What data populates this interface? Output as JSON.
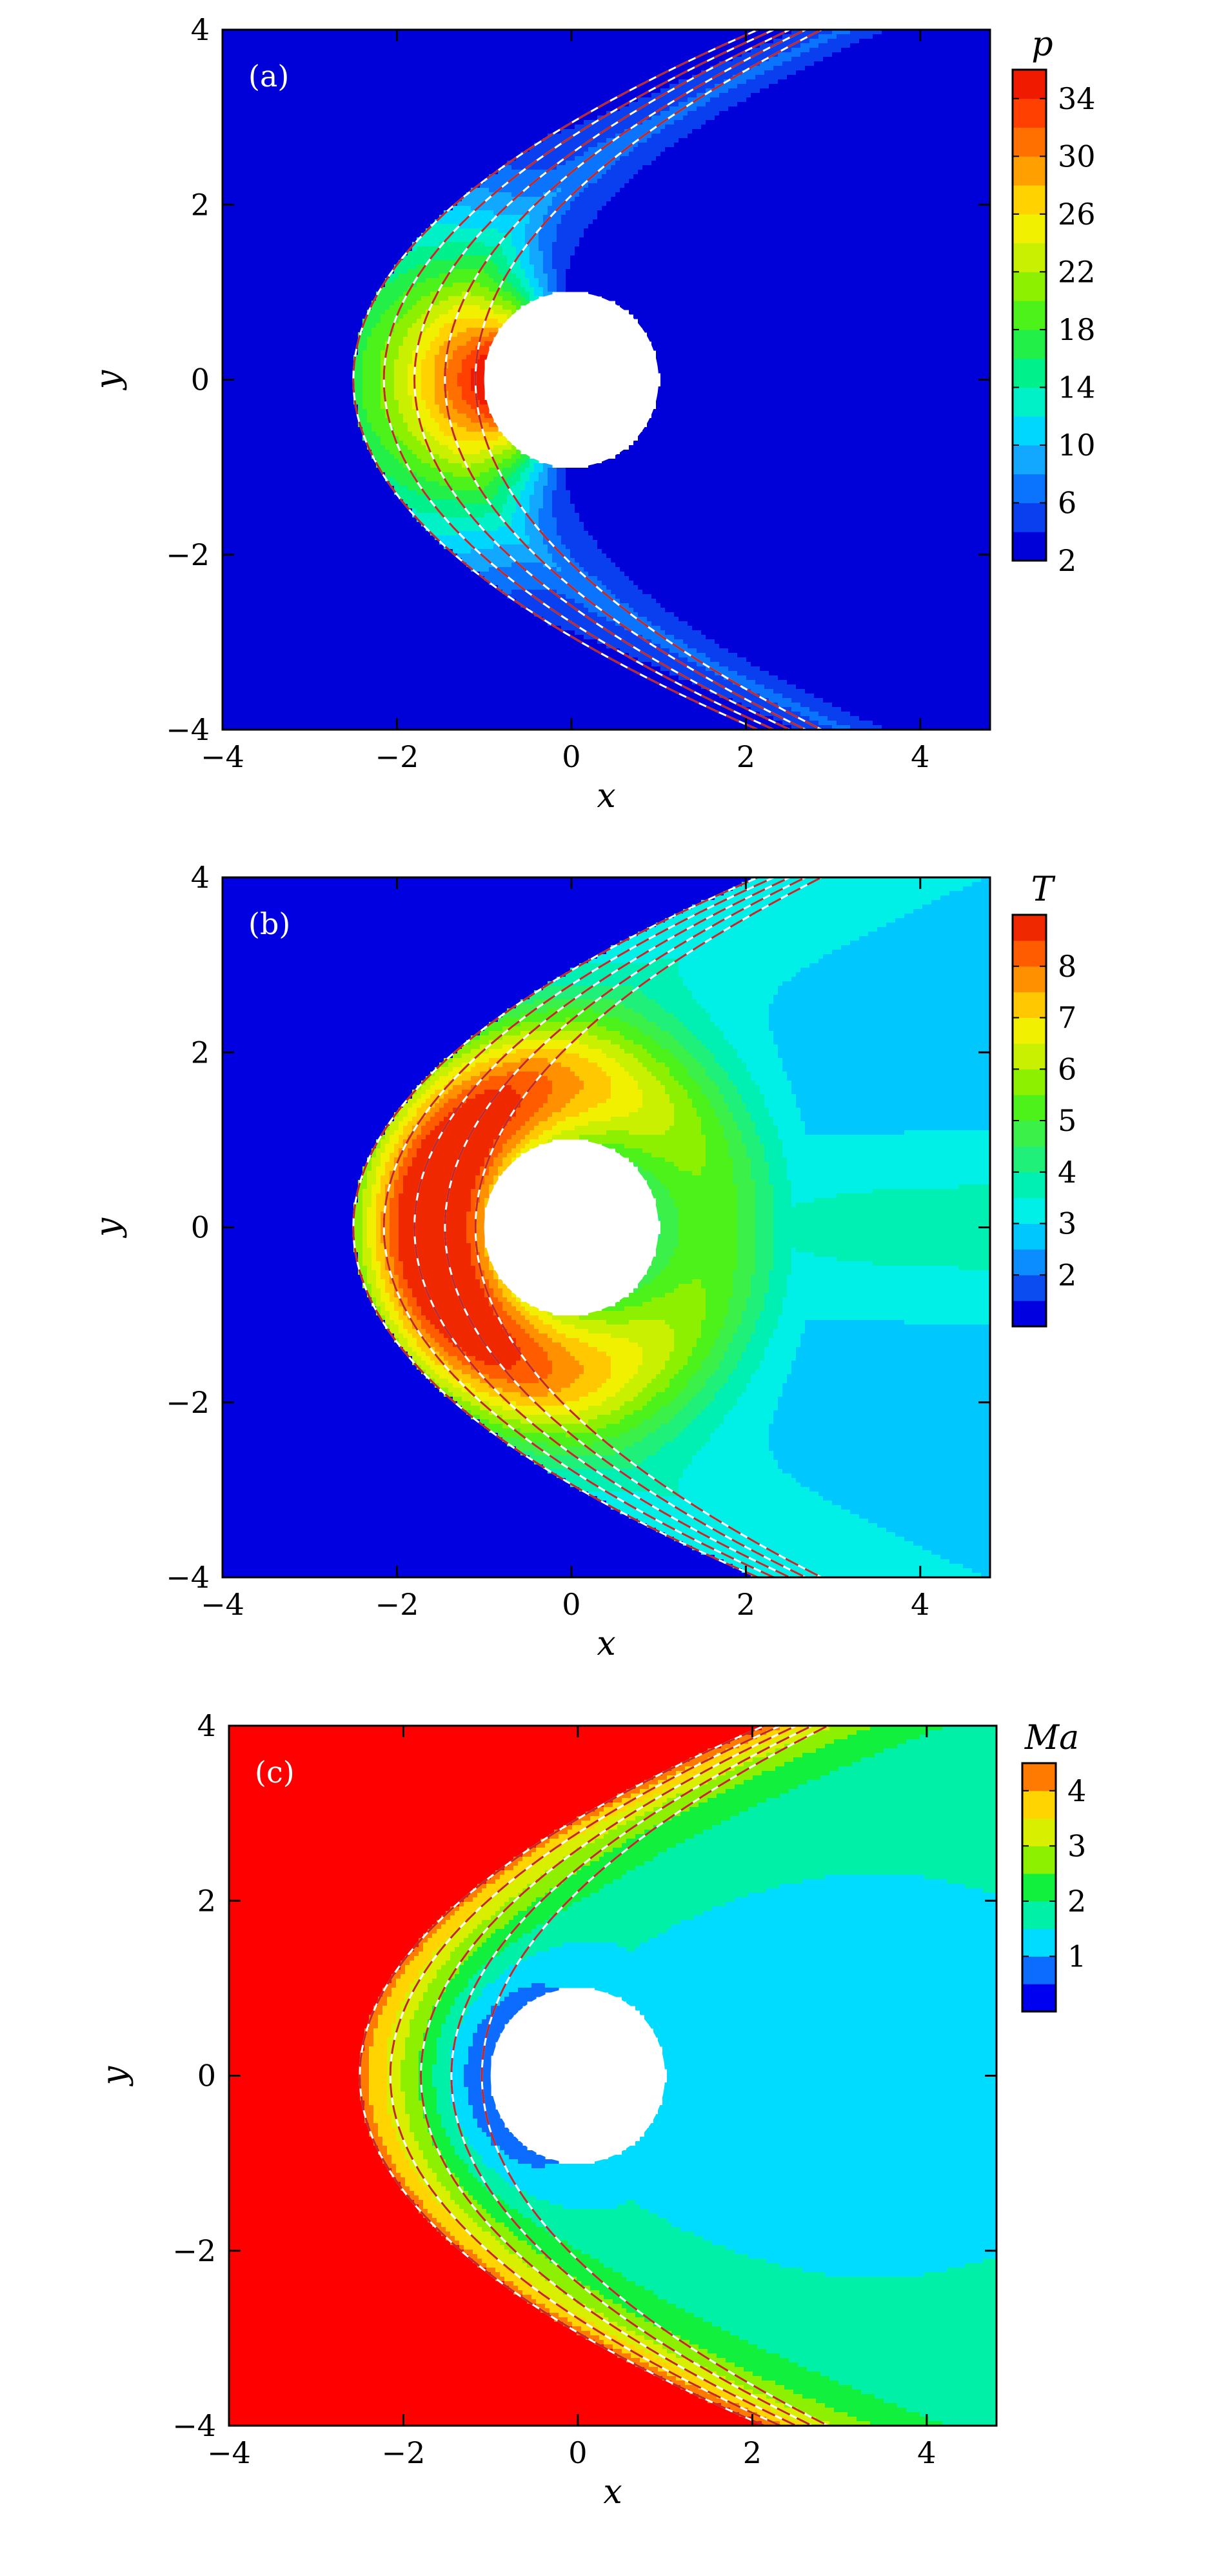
{
  "figure": {
    "panels": [
      {
        "panel_label": "(a)",
        "xlabel": "x",
        "ylabel": "y",
        "xticks": [
          "−4",
          "−2",
          "0",
          "2",
          "4"
        ],
        "yticks": [
          "4",
          "2",
          "0",
          "−2",
          "−4"
        ],
        "colorbar_title": "p",
        "colorbar_ticks": [
          "34",
          "30",
          "26",
          "22",
          "18",
          "14",
          "10",
          "6",
          "2"
        ]
      },
      {
        "panel_label": "(b)",
        "xlabel": "x",
        "ylabel": "y",
        "xticks": [
          "−4",
          "−2",
          "0",
          "2",
          "4"
        ],
        "yticks": [
          "4",
          "2",
          "0",
          "−2",
          "−4"
        ],
        "colorbar_title": "T",
        "colorbar_ticks": [
          "8",
          "7",
          "6",
          "5",
          "4",
          "3",
          "2"
        ]
      },
      {
        "panel_label": "(c)",
        "xlabel": "x",
        "ylabel": "y",
        "xticks": [
          "−4",
          "−2",
          "0",
          "2",
          "4"
        ],
        "yticks": [
          "4",
          "2",
          "0",
          "−2",
          "−4"
        ],
        "colorbar_title": "Ma",
        "colorbar_ticks": [
          "4",
          "3",
          "2",
          "1"
        ]
      }
    ]
  },
  "chart_data": [
    {
      "type": "heatmap",
      "panel": "(a)",
      "variable": "p",
      "xlim": [
        -4,
        4.8
      ],
      "ylim": [
        -4,
        4
      ],
      "levels": [
        2,
        4,
        6,
        8,
        10,
        12,
        14,
        16,
        18,
        20,
        22,
        24,
        26,
        28,
        30,
        32,
        34,
        36
      ],
      "colorbar_ticks": [
        2,
        6,
        10,
        14,
        18,
        22,
        26,
        30,
        34
      ],
      "colormap": [
        "#0000d8",
        "#0a3ff0",
        "#0b74ff",
        "#12a8ff",
        "#00d7ff",
        "#00f0c8",
        "#00f08c",
        "#22f049",
        "#4cf21a",
        "#8cf000",
        "#c8f000",
        "#f0f000",
        "#ffd200",
        "#ffa000",
        "#ff7000",
        "#ff4000",
        "#f01a00",
        "#e00000"
      ],
      "obstacle": {
        "shape": "circle",
        "center": [
          0,
          0
        ],
        "radius": 1
      },
      "contour_lines": {
        "solid": "#ffffff",
        "dashed": "#c0282a"
      }
    },
    {
      "type": "heatmap",
      "panel": "(b)",
      "variable": "T",
      "xlim": [
        -4,
        4.8
      ],
      "ylim": [
        -4,
        4
      ],
      "levels": [
        1,
        1.5,
        2,
        2.5,
        3,
        3.5,
        4,
        4.5,
        5,
        5.5,
        6,
        6.5,
        7,
        7.5,
        8,
        8.5,
        9
      ],
      "colorbar_ticks": [
        2,
        3,
        4,
        5,
        6,
        7,
        8
      ],
      "colormap": [
        "#0000e0",
        "#0a4cf0",
        "#0b8cff",
        "#00c8ff",
        "#00f0e8",
        "#00f0b4",
        "#1ef07a",
        "#3cf04a",
        "#4cf21a",
        "#8cf000",
        "#c8f000",
        "#f0f000",
        "#ffc800",
        "#ff9000",
        "#ff5c00",
        "#f02800"
      ],
      "obstacle": {
        "shape": "circle",
        "center": [
          0,
          0
        ],
        "radius": 1
      },
      "contour_lines": {
        "solid": "#ffffff",
        "dashed": "#c0282a"
      }
    },
    {
      "type": "heatmap",
      "panel": "(c)",
      "variable": "Ma",
      "xlim": [
        -4,
        4.8
      ],
      "ylim": [
        -4,
        4
      ],
      "levels": [
        0,
        0.5,
        1,
        1.5,
        2,
        2.5,
        3,
        3.5,
        4,
        4.5
      ],
      "colorbar_ticks": [
        1,
        2,
        3,
        4
      ],
      "colormap": [
        "#0000f0",
        "#0b6cff",
        "#00dcff",
        "#00f0a8",
        "#11f03c",
        "#8cf000",
        "#d8f000",
        "#ffd400",
        "#ff7a00",
        "#ff0000"
      ],
      "obstacle": {
        "shape": "circle",
        "center": [
          0,
          0
        ],
        "radius": 1
      },
      "contour_lines": {
        "solid": "#ffffff",
        "dashed": "#c0282a"
      }
    }
  ]
}
